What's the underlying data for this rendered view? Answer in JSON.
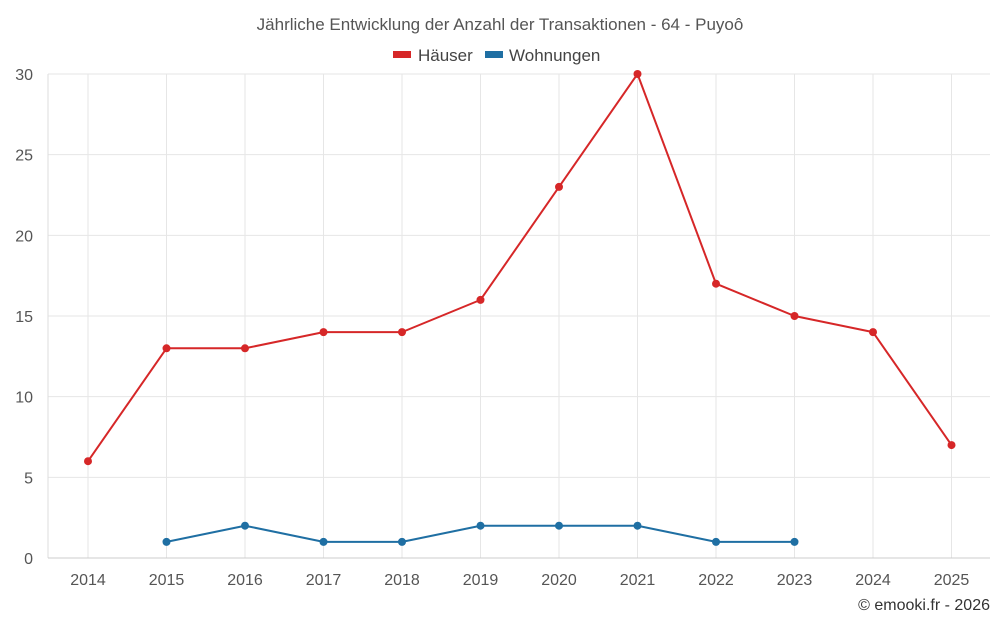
{
  "chart_data": {
    "type": "line",
    "title": "Jährliche Entwicklung der Anzahl der Transaktionen - 64 - Puyoô",
    "categories": [
      "2014",
      "2015",
      "2016",
      "2017",
      "2018",
      "2019",
      "2020",
      "2021",
      "2022",
      "2023",
      "2024",
      "2025"
    ],
    "series": [
      {
        "name": "Häuser",
        "color": "#d62728",
        "values": [
          6,
          13,
          13,
          14,
          14,
          16,
          23,
          30,
          17,
          15,
          14,
          7
        ]
      },
      {
        "name": "Wohnungen",
        "color": "#1f6fa3",
        "values": [
          null,
          1,
          2,
          1,
          1,
          2,
          2,
          2,
          1,
          1,
          null,
          null
        ]
      }
    ],
    "yticks": [
      0,
      5,
      10,
      15,
      20,
      25,
      30
    ],
    "ylim": [
      0,
      30
    ],
    "xlabel": "",
    "ylabel": "",
    "grid": true,
    "legend_position": "top-center"
  },
  "credit": "© emooki.fr - 2026"
}
